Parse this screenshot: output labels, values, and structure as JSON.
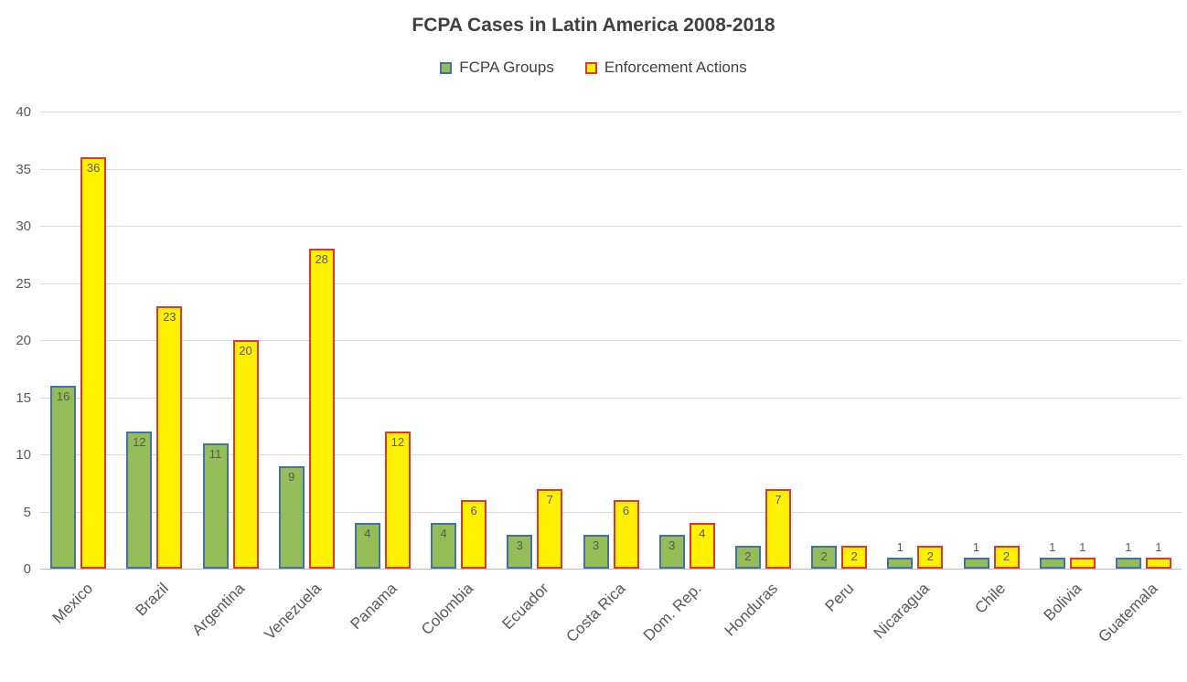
{
  "chart_data": {
    "type": "bar",
    "title": "FCPA Cases in Latin America 2008-2018",
    "xlabel": "",
    "ylabel": "",
    "ylim": [
      0,
      40
    ],
    "ytick_step": 5,
    "grid": true,
    "legend_position": "top",
    "categories": [
      "Mexico",
      "Brazil",
      "Argentina",
      "Venezuela",
      "Panama",
      "Colombia",
      "Ecuador",
      "Costa Rica",
      "Dom. Rep.",
      "Honduras",
      "Peru",
      "Nicaragua",
      "Chile",
      "Bolivia",
      "Guatemala"
    ],
    "series": [
      {
        "name": "FCPA Groups",
        "values": [
          16,
          12,
          11,
          9,
          4,
          4,
          3,
          3,
          3,
          2,
          2,
          1,
          1,
          1,
          1
        ],
        "fill": "#94BD57",
        "border": "#4472A8"
      },
      {
        "name": "Enforcement Actions",
        "values": [
          36,
          23,
          20,
          28,
          12,
          6,
          7,
          6,
          4,
          7,
          2,
          2,
          2,
          1,
          1
        ],
        "fill": "#FFF100",
        "border": "#E0362C"
      }
    ],
    "colors": {
      "title_text": "#404040",
      "axis_text": "#595959",
      "data_label_text": "#595959",
      "gridline": "#d9d9d9"
    }
  }
}
